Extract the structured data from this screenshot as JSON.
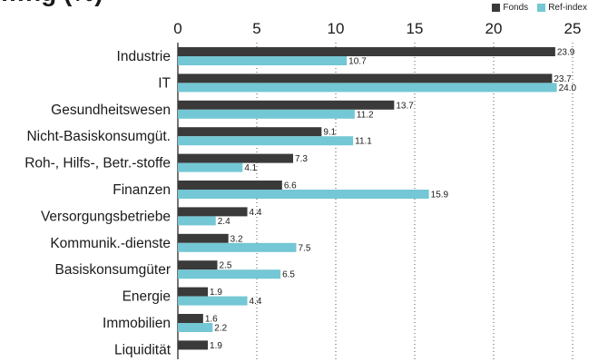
{
  "title": "…ng           (%)",
  "colors": {
    "fonds": "#3a3a3a",
    "ref": "#74c7d4"
  },
  "chart_data": {
    "type": "bar",
    "orientation": "horizontal",
    "title": "…ng           (%)",
    "xlim": [
      0,
      25
    ],
    "x_ticks": [
      "0",
      "5",
      "10",
      "15",
      "20",
      "25"
    ],
    "legend_position": "top-right",
    "grid": "dotted vertical",
    "categories": [
      "Industrie",
      "IT",
      "Gesundheitswesen",
      "Nicht-Basiskonsumgüt.",
      "Roh-, Hilfs-, Betr.-stoffe",
      "Finanzen",
      "Versorgungsbetriebe",
      "Kommunik.-dienste",
      "Basiskonsumgüter",
      "Energie",
      "Immobilien",
      "Liquidität"
    ],
    "series": [
      {
        "name": "Fonds",
        "values": [
          23.9,
          23.7,
          13.7,
          9.1,
          7.3,
          6.6,
          4.4,
          3.2,
          2.5,
          1.9,
          1.6,
          1.9
        ],
        "labels": [
          "23.9",
          "23.7",
          "13.7",
          "9.1",
          "7.3",
          "6.6",
          "4.4",
          "3.2",
          "2.5",
          "1.9",
          "1.6",
          "1.9"
        ]
      },
      {
        "name": "Ref-index",
        "values": [
          10.7,
          24.0,
          11.2,
          11.1,
          4.1,
          15.9,
          2.4,
          7.5,
          6.5,
          4.4,
          2.2,
          null
        ],
        "labels": [
          "10.7",
          "24.0",
          "11.2",
          "11.1",
          "4.1",
          "15.9",
          "2.4",
          "7.5",
          "6.5",
          "4.4",
          "2.2",
          ""
        ]
      }
    ]
  }
}
